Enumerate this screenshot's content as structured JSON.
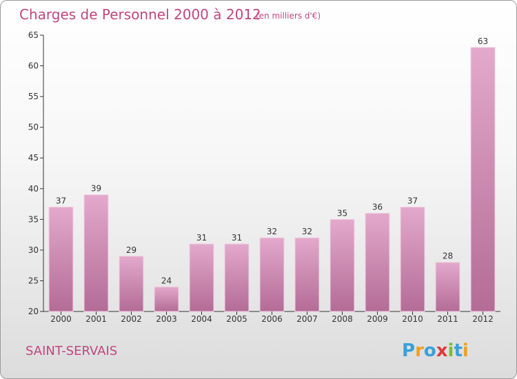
{
  "chart_data": {
    "type": "bar",
    "title": "Charges de Personnel 2000 à 2012",
    "subtitle": "(en milliers d'€)",
    "categories": [
      "2000",
      "2001",
      "2002",
      "2003",
      "2004",
      "2005",
      "2006",
      "2007",
      "2008",
      "2009",
      "2010",
      "2011",
      "2012"
    ],
    "values": [
      37,
      39,
      29,
      24,
      31,
      31,
      32,
      32,
      35,
      36,
      37,
      28,
      63
    ],
    "yticks": [
      20,
      25,
      30,
      35,
      40,
      45,
      50,
      55,
      60,
      65
    ],
    "ylim": [
      20,
      65
    ],
    "xlabel": "",
    "ylabel": "",
    "grid": false,
    "bar_color": "#c97fa8"
  },
  "footer": {
    "town": "SAINT-SERVAIS",
    "logo_letters": [
      "P",
      "r",
      "o",
      "x",
      "i",
      "t",
      "i"
    ],
    "logo_colors": [
      "#3aa0d8",
      "#f0a020",
      "#3aa0d8",
      "#e03a3a",
      "#7cbb3a",
      "#3aa0d8",
      "#f0a020"
    ]
  }
}
